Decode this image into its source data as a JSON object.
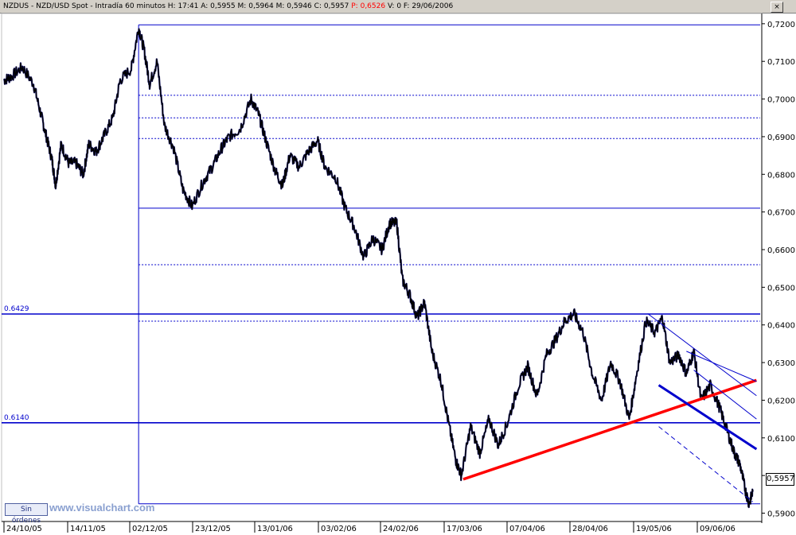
{
  "window": {
    "title_prefix": "NZDUS - NZD/USD Spot - Intradía 60 minutos",
    "h_label": "H:",
    "h": "17:41",
    "a_label": "A:",
    "a": "0,5955",
    "m_label": "M:",
    "m": "0,5964",
    "mi_label": "M:",
    "mi": "0,5946",
    "c_label": "C:",
    "c": "0,5957",
    "p_label": "P:",
    "p": "0,6526",
    "v_label": "V:",
    "v": "0",
    "f_label": "F:",
    "f": "29/06/2006",
    "close_glyph": "×",
    "orders_label": "Sin órdenes",
    "watermark": "www.visualchart.com",
    "last_price": "0,5957"
  },
  "colors": {
    "price": "#000000",
    "lines": "#0000cc",
    "support": "#ff0000",
    "frame": "#d4d0c8"
  },
  "chart_data": {
    "type": "line",
    "series_description": "NZD/USD 60-minute price",
    "x_labels": [
      "24/10/05",
      "14/11/05",
      "02/12/05",
      "23/12/05",
      "13/01/06",
      "03/02/06",
      "24/02/06",
      "17/03/06",
      "07/04/06",
      "28/04/06",
      "19/05/06",
      "09/06/06"
    ],
    "y_ticks": [
      "0,7200",
      "0,7100",
      "0,7000",
      "0,6900",
      "0,6800",
      "0,6700",
      "0,6600",
      "0,6500",
      "0,6400",
      "0,6300",
      "0,6200",
      "0,6100",
      "0,6000",
      "0,5900"
    ],
    "ylim": [
      0.588,
      0.7225
    ],
    "levels": [
      {
        "label": "0.6429",
        "value": 0.6429
      },
      {
        "label": "0.6140",
        "value": 0.614
      }
    ],
    "fib_levels": [
      0.7197,
      0.701,
      0.695,
      0.6895,
      0.671,
      0.656,
      0.641,
      0.5925
    ],
    "price_path": [
      {
        "x": 0.0,
        "y": 0.705
      },
      {
        "x": 0.4,
        "y": 0.706
      },
      {
        "x": 1.0,
        "y": 0.7085
      },
      {
        "x": 1.6,
        "y": 0.704
      },
      {
        "x": 2.0,
        "y": 0.696
      },
      {
        "x": 2.3,
        "y": 0.69
      },
      {
        "x": 2.6,
        "y": 0.684
      },
      {
        "x": 2.8,
        "y": 0.677
      },
      {
        "x": 3.1,
        "y": 0.688
      },
      {
        "x": 3.5,
        "y": 0.683
      },
      {
        "x": 3.9,
        "y": 0.683
      },
      {
        "x": 4.3,
        "y": 0.68
      },
      {
        "x": 4.6,
        "y": 0.688
      },
      {
        "x": 5.0,
        "y": 0.686
      },
      {
        "x": 5.4,
        "y": 0.69
      },
      {
        "x": 5.9,
        "y": 0.695
      },
      {
        "x": 6.3,
        "y": 0.705
      },
      {
        "x": 6.9,
        "y": 0.708
      },
      {
        "x": 7.3,
        "y": 0.719
      },
      {
        "x": 7.6,
        "y": 0.713
      },
      {
        "x": 7.9,
        "y": 0.704
      },
      {
        "x": 8.3,
        "y": 0.71
      },
      {
        "x": 8.7,
        "y": 0.693
      },
      {
        "x": 9.2,
        "y": 0.687
      },
      {
        "x": 9.7,
        "y": 0.676
      },
      {
        "x": 10.2,
        "y": 0.6715
      },
      {
        "x": 10.8,
        "y": 0.678
      },
      {
        "x": 11.3,
        "y": 0.682
      },
      {
        "x": 11.8,
        "y": 0.687
      },
      {
        "x": 12.2,
        "y": 0.69
      },
      {
        "x": 12.8,
        "y": 0.692
      },
      {
        "x": 13.4,
        "y": 0.7
      },
      {
        "x": 13.8,
        "y": 0.696
      },
      {
        "x": 14.2,
        "y": 0.689
      },
      {
        "x": 14.7,
        "y": 0.681
      },
      {
        "x": 15.1,
        "y": 0.677
      },
      {
        "x": 15.5,
        "y": 0.685
      },
      {
        "x": 16.0,
        "y": 0.682
      },
      {
        "x": 16.5,
        "y": 0.686
      },
      {
        "x": 17.0,
        "y": 0.689
      },
      {
        "x": 17.4,
        "y": 0.682
      },
      {
        "x": 18.0,
        "y": 0.679
      },
      {
        "x": 18.5,
        "y": 0.671
      },
      {
        "x": 19.0,
        "y": 0.666
      },
      {
        "x": 19.5,
        "y": 0.658
      },
      {
        "x": 20.0,
        "y": 0.663
      },
      {
        "x": 20.5,
        "y": 0.66
      },
      {
        "x": 20.9,
        "y": 0.667
      },
      {
        "x": 21.3,
        "y": 0.667
      },
      {
        "x": 21.6,
        "y": 0.652
      },
      {
        "x": 22.0,
        "y": 0.648
      },
      {
        "x": 22.4,
        "y": 0.642
      },
      {
        "x": 22.8,
        "y": 0.646
      },
      {
        "x": 23.2,
        "y": 0.633
      },
      {
        "x": 23.7,
        "y": 0.625
      },
      {
        "x": 24.1,
        "y": 0.614
      },
      {
        "x": 24.5,
        "y": 0.604
      },
      {
        "x": 24.8,
        "y": 0.6
      },
      {
        "x": 25.3,
        "y": 0.613
      },
      {
        "x": 25.8,
        "y": 0.606
      },
      {
        "x": 26.3,
        "y": 0.615
      },
      {
        "x": 26.8,
        "y": 0.608
      },
      {
        "x": 27.3,
        "y": 0.614
      },
      {
        "x": 27.9,
        "y": 0.624
      },
      {
        "x": 28.4,
        "y": 0.629
      },
      {
        "x": 28.9,
        "y": 0.621
      },
      {
        "x": 29.4,
        "y": 0.632
      },
      {
        "x": 29.9,
        "y": 0.636
      },
      {
        "x": 30.4,
        "y": 0.641
      },
      {
        "x": 30.9,
        "y": 0.643
      },
      {
        "x": 31.4,
        "y": 0.638
      },
      {
        "x": 31.9,
        "y": 0.627
      },
      {
        "x": 32.4,
        "y": 0.62
      },
      {
        "x": 32.9,
        "y": 0.63
      },
      {
        "x": 33.4,
        "y": 0.625
      },
      {
        "x": 33.9,
        "y": 0.615
      },
      {
        "x": 34.3,
        "y": 0.627
      },
      {
        "x": 34.8,
        "y": 0.641
      },
      {
        "x": 35.3,
        "y": 0.638
      },
      {
        "x": 35.7,
        "y": 0.642
      },
      {
        "x": 36.1,
        "y": 0.63
      },
      {
        "x": 36.6,
        "y": 0.632
      },
      {
        "x": 37.0,
        "y": 0.627
      },
      {
        "x": 37.4,
        "y": 0.633
      },
      {
        "x": 37.8,
        "y": 0.62
      },
      {
        "x": 38.3,
        "y": 0.624
      },
      {
        "x": 38.8,
        "y": 0.618
      },
      {
        "x": 39.2,
        "y": 0.612
      },
      {
        "x": 39.6,
        "y": 0.606
      },
      {
        "x": 39.9,
        "y": 0.603
      },
      {
        "x": 40.2,
        "y": 0.596
      },
      {
        "x": 40.4,
        "y": 0.5925
      },
      {
        "x": 40.6,
        "y": 0.5957
      }
    ],
    "drawn_lines": [
      {
        "color": "red",
        "from": {
          "x": 24.9,
          "y": 0.599
        },
        "to": {
          "x": 40.8,
          "y": 0.6253
        }
      },
      {
        "color": "blue",
        "from": {
          "x": 34.9,
          "y": 0.643
        },
        "to": {
          "x": 40.8,
          "y": 0.6212
        }
      },
      {
        "color": "blue",
        "from": {
          "x": 35.5,
          "y": 0.624
        },
        "to": {
          "x": 40.8,
          "y": 0.607
        }
      },
      {
        "color": "blue",
        "from": {
          "x": 35.5,
          "y": 0.613
        },
        "to": {
          "x": 40.6,
          "y": 0.593
        }
      },
      {
        "color": "blue",
        "from": {
          "x": 37.0,
          "y": 0.633
        },
        "to": {
          "x": 40.8,
          "y": 0.625
        }
      },
      {
        "color": "blue",
        "from": {
          "x": 37.4,
          "y": 0.628
        },
        "to": {
          "x": 40.8,
          "y": 0.615
        }
      }
    ]
  }
}
